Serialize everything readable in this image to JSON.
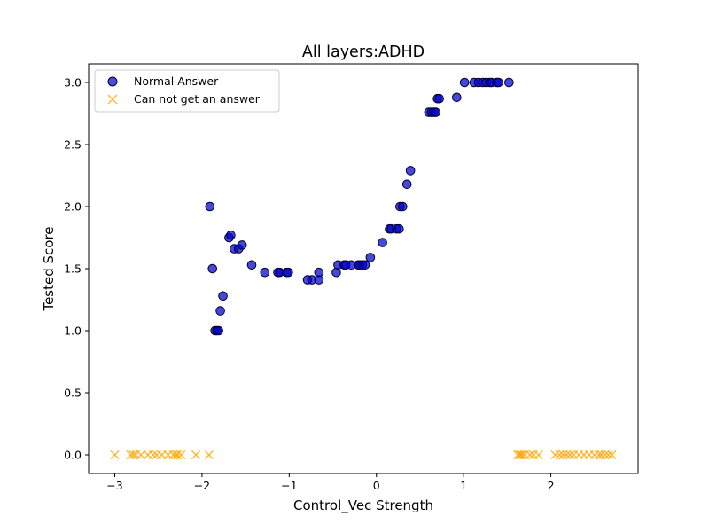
{
  "chart_data": {
    "type": "scatter",
    "title": "All layers:ADHD",
    "xlabel": "Control_Vec Strength",
    "ylabel": "Tested Score",
    "xlim": [
      -3.3,
      3.0
    ],
    "ylim": [
      -0.15,
      3.15
    ],
    "xticks": [
      "−3",
      "−2",
      "−1",
      "0",
      "1",
      "2"
    ],
    "xtick_values": [
      -3,
      -2,
      -1,
      0,
      1,
      2
    ],
    "yticks": [
      "0.0",
      "0.5",
      "1.0",
      "1.5",
      "2.0",
      "2.5",
      "3.0"
    ],
    "ytick_values": [
      0.0,
      0.5,
      1.0,
      1.5,
      2.0,
      2.5,
      3.0
    ],
    "grid": false,
    "legend_position": "top-left",
    "series": [
      {
        "name": "Normal Answer",
        "marker": "circle",
        "color": "#0000cc",
        "edge_color": "#000033",
        "points": [
          [
            -1.91,
            2.0
          ],
          [
            -1.88,
            1.5
          ],
          [
            -1.85,
            1.0
          ],
          [
            -1.83,
            1.0
          ],
          [
            -1.81,
            1.0
          ],
          [
            -1.79,
            1.16
          ],
          [
            -1.76,
            1.28
          ],
          [
            -1.69,
            1.75
          ],
          [
            -1.67,
            1.77
          ],
          [
            -1.63,
            1.66
          ],
          [
            -1.58,
            1.66
          ],
          [
            -1.54,
            1.69
          ],
          [
            -1.43,
            1.53
          ],
          [
            -1.28,
            1.47
          ],
          [
            -1.13,
            1.47
          ],
          [
            -1.11,
            1.47
          ],
          [
            -1.03,
            1.47
          ],
          [
            -1.01,
            1.47
          ],
          [
            -0.79,
            1.41
          ],
          [
            -0.74,
            1.41
          ],
          [
            -0.66,
            1.41
          ],
          [
            -0.66,
            1.47
          ],
          [
            -0.46,
            1.47
          ],
          [
            -0.44,
            1.53
          ],
          [
            -0.37,
            1.53
          ],
          [
            -0.35,
            1.53
          ],
          [
            -0.29,
            1.53
          ],
          [
            -0.21,
            1.53
          ],
          [
            -0.19,
            1.53
          ],
          [
            -0.16,
            1.53
          ],
          [
            -0.13,
            1.53
          ],
          [
            -0.07,
            1.59
          ],
          [
            0.07,
            1.71
          ],
          [
            0.15,
            1.82
          ],
          [
            0.17,
            1.82
          ],
          [
            0.23,
            1.82
          ],
          [
            0.26,
            1.82
          ],
          [
            0.27,
            2.0
          ],
          [
            0.3,
            2.0
          ],
          [
            0.35,
            2.18
          ],
          [
            0.39,
            2.29
          ],
          [
            0.6,
            2.76
          ],
          [
            0.63,
            2.76
          ],
          [
            0.66,
            2.76
          ],
          [
            0.68,
            2.76
          ],
          [
            0.7,
            2.87
          ],
          [
            0.72,
            2.87
          ],
          [
            0.92,
            2.88
          ],
          [
            1.01,
            3.0
          ],
          [
            1.12,
            3.0
          ],
          [
            1.17,
            3.0
          ],
          [
            1.22,
            3.0
          ],
          [
            1.26,
            3.0
          ],
          [
            1.3,
            3.0
          ],
          [
            1.32,
            3.0
          ],
          [
            1.38,
            3.0
          ],
          [
            1.4,
            3.0
          ],
          [
            1.52,
            3.0
          ]
        ]
      },
      {
        "name": "Can not get an answer",
        "marker": "x",
        "color": "#ffa500",
        "points": [
          [
            -3.0,
            0
          ],
          [
            -2.82,
            0
          ],
          [
            -2.79,
            0
          ],
          [
            -2.76,
            0
          ],
          [
            -2.7,
            0
          ],
          [
            -2.62,
            0
          ],
          [
            -2.56,
            0
          ],
          [
            -2.52,
            0
          ],
          [
            -2.46,
            0
          ],
          [
            -2.39,
            0
          ],
          [
            -2.33,
            0
          ],
          [
            -2.3,
            0
          ],
          [
            -2.28,
            0
          ],
          [
            -2.24,
            0
          ],
          [
            -2.07,
            0
          ],
          [
            -1.92,
            0
          ],
          [
            1.62,
            0
          ],
          [
            1.64,
            0
          ],
          [
            1.66,
            0
          ],
          [
            1.67,
            0
          ],
          [
            1.7,
            0
          ],
          [
            1.76,
            0
          ],
          [
            1.8,
            0
          ],
          [
            1.86,
            0
          ],
          [
            2.05,
            0
          ],
          [
            2.1,
            0
          ],
          [
            2.14,
            0
          ],
          [
            2.18,
            0
          ],
          [
            2.22,
            0
          ],
          [
            2.26,
            0
          ],
          [
            2.32,
            0
          ],
          [
            2.38,
            0
          ],
          [
            2.44,
            0
          ],
          [
            2.5,
            0
          ],
          [
            2.55,
            0
          ],
          [
            2.58,
            0
          ],
          [
            2.62,
            0
          ],
          [
            2.66,
            0
          ],
          [
            2.7,
            0
          ]
        ]
      }
    ]
  }
}
